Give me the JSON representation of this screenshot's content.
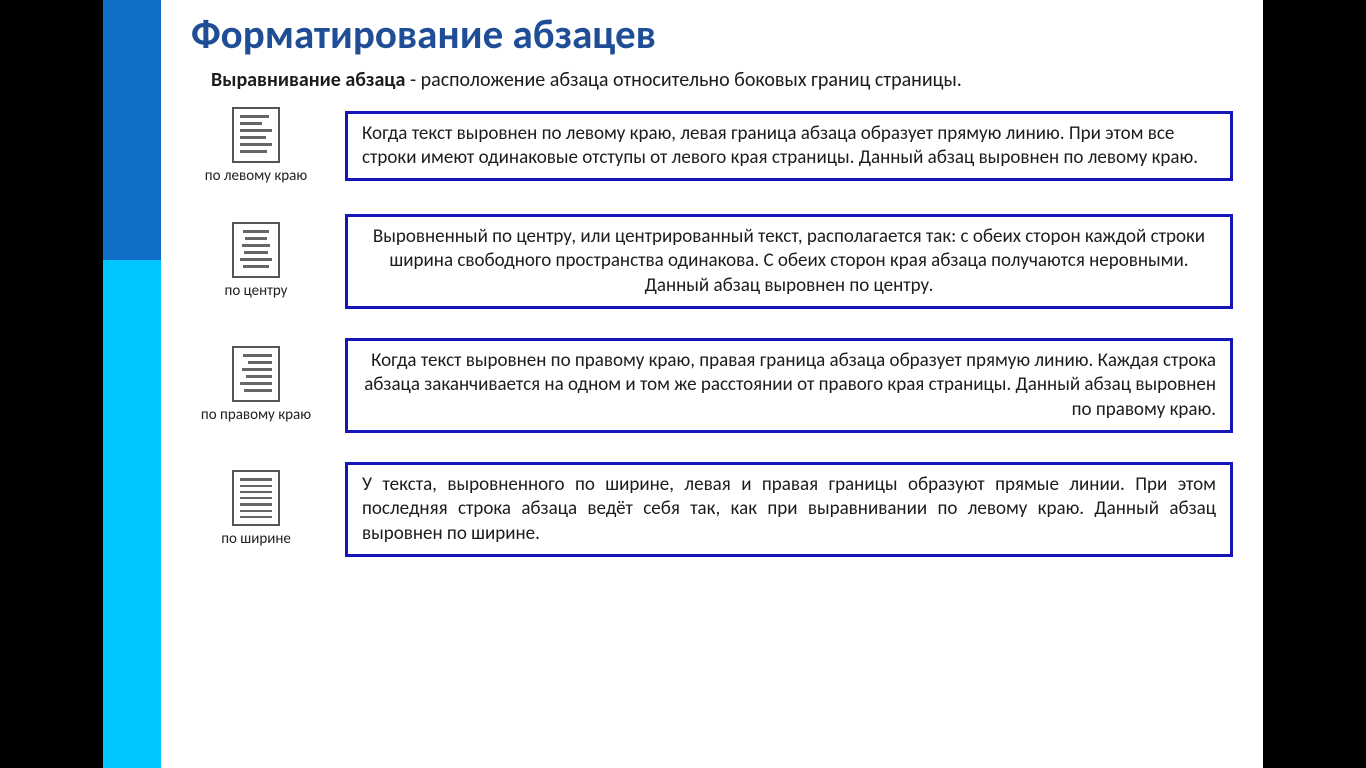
{
  "title": "Форматирование абзацев",
  "intro_bold": "Выравнивание абзаца",
  "intro_rest": " - расположение абзаца относительно боковых границ страницы.",
  "colors": {
    "title": "#1f4e96",
    "sidebar_top": "#0f6fc6",
    "sidebar_bottom": "#00c7ff",
    "box_border": "#1616b8",
    "text": "#1c1c1c",
    "page_bg": "#ffffff",
    "outer_bg": "#000000",
    "icon_border": "#555555",
    "icon_line": "#666666"
  },
  "typography": {
    "title_fontsize": 41,
    "intro_fontsize": 20,
    "desc_fontsize": 19,
    "label_fontsize": 15,
    "font_family": "Calibri"
  },
  "rows": [
    {
      "label": "по левому краю",
      "align": "left",
      "lines": [
        {
          "l": 0,
          "r": 10
        },
        {
          "l": 0,
          "r": 30
        },
        {
          "l": 0,
          "r": 0
        },
        {
          "l": 0,
          "r": 20
        },
        {
          "l": 0,
          "r": 0
        },
        {
          "l": 0,
          "r": 15
        }
      ],
      "desc": "Когда текст выровнен по левому краю, левая граница абзаца образует прямую линию. При этом все строки имеют одинаковые отступы от левого края страницы. Данный абзац выровнен по левому краю."
    },
    {
      "label": "по центру",
      "align": "center",
      "lines": [
        {
          "l": 10,
          "r": 10
        },
        {
          "l": 15,
          "r": 15
        },
        {
          "l": 5,
          "r": 5
        },
        {
          "l": 12,
          "r": 12
        },
        {
          "l": 0,
          "r": 0
        },
        {
          "l": 8,
          "r": 8
        }
      ],
      "desc": "Выровненный по центру, или центрированный текст, располагается так: с обеих сторон каждой строки ширина свободного пространства одинакова. С обеих сторон края абзаца получаются неровными. Данный абзац выровнен по центру."
    },
    {
      "label": "по правому краю",
      "align": "right",
      "lines": [
        {
          "l": 10,
          "r": 0
        },
        {
          "l": 25,
          "r": 0
        },
        {
          "l": 5,
          "r": 0
        },
        {
          "l": 18,
          "r": 0
        },
        {
          "l": 0,
          "r": 0
        },
        {
          "l": 12,
          "r": 0
        }
      ],
      "desc": "Когда текст выровнен по правому краю, правая граница абзаца образует прямую линию. Каждая строка абзаца заканчивается на одном и том же расстоянии от правого края страницы. Данный абзац выровнен по правому краю."
    },
    {
      "label": "по ширине",
      "align": "justify",
      "lines": [
        {
          "l": 0,
          "r": 0
        },
        {
          "l": 0,
          "r": 0
        },
        {
          "l": 0,
          "r": 0
        },
        {
          "l": 0,
          "r": 0
        },
        {
          "l": 0,
          "r": 0
        },
        {
          "l": 0,
          "r": 0
        },
        {
          "l": 0,
          "r": 0
        }
      ],
      "desc": "У текста, выровненного по ширине, левая и правая границы образуют прямые линии. При этом последняя строка абзаца ведёт себя так, как при выравнивании по левому краю. Данный абзац выровнен по ширине."
    }
  ]
}
